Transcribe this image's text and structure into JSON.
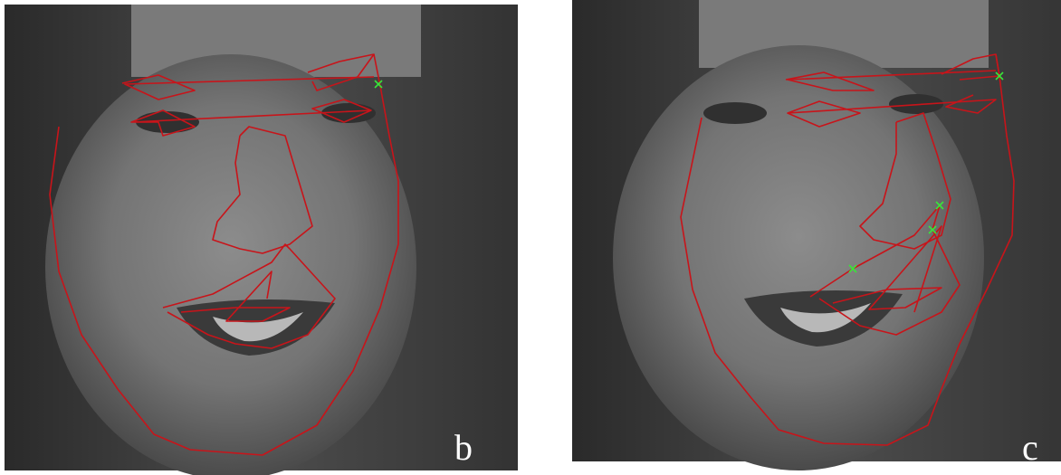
{
  "panels": [
    {
      "label": "b"
    },
    {
      "label": "c"
    }
  ]
}
